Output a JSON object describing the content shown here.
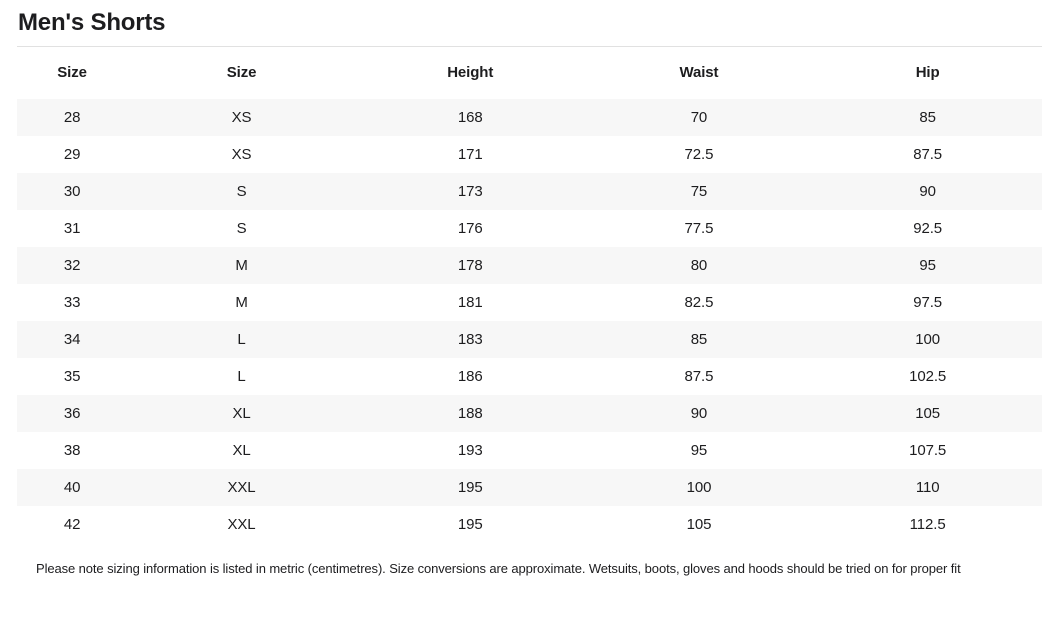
{
  "page": {
    "title": "Men's Shorts",
    "footnote": "Please note sizing information is listed in metric (centimetres). Size conversions are approximate. Wetsuits, boots, gloves and hoods should be tried on for proper fit"
  },
  "table": {
    "columns": [
      "Size",
      "Size",
      "Height",
      "Waist",
      "Hip"
    ],
    "rows": [
      [
        "28",
        "XS",
        "168",
        "70",
        "85"
      ],
      [
        "29",
        "XS",
        "171",
        "72.5",
        "87.5"
      ],
      [
        "30",
        "S",
        "173",
        "75",
        "90"
      ],
      [
        "31",
        "S",
        "176",
        "77.5",
        "92.5"
      ],
      [
        "32",
        "M",
        "178",
        "80",
        "95"
      ],
      [
        "33",
        "M",
        "181",
        "82.5",
        "97.5"
      ],
      [
        "34",
        "L",
        "183",
        "85",
        "100"
      ],
      [
        "35",
        "L",
        "186",
        "87.5",
        "102.5"
      ],
      [
        "36",
        "XL",
        "188",
        "90",
        "105"
      ],
      [
        "38",
        "XL",
        "193",
        "95",
        "107.5"
      ],
      [
        "40",
        "XXL",
        "195",
        "100",
        "110"
      ],
      [
        "42",
        "XXL",
        "195",
        "105",
        "112.5"
      ]
    ]
  },
  "colors": {
    "text": "#1d1d1f",
    "stripe": "#f7f7f7",
    "divider": "#e1e1e1",
    "bg": "#ffffff"
  }
}
